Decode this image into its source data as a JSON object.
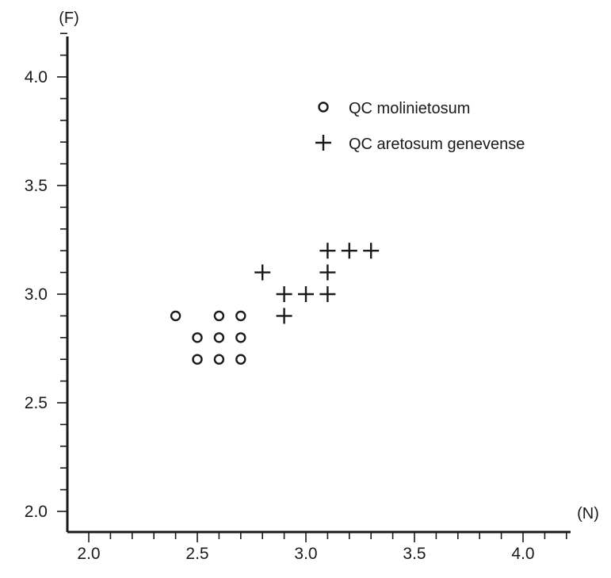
{
  "chart_data": {
    "type": "scatter",
    "xlabel": "(N)",
    "ylabel": "(F)",
    "xlim": [
      1.9,
      4.2
    ],
    "ylim": [
      1.9,
      4.2
    ],
    "x_major_ticks": [
      2.0,
      2.5,
      3.0,
      3.5,
      4.0
    ],
    "y_major_ticks": [
      2.0,
      2.5,
      3.0,
      3.5,
      4.0
    ],
    "x_tick_labels": [
      "2.0",
      "2.5",
      "3.0",
      "3.5",
      "4.0"
    ],
    "y_tick_labels": [
      "2.0",
      "2.5",
      "3.0",
      "3.5",
      "4.0"
    ],
    "minor_tick_step": 0.1,
    "grid": false,
    "legend_position": "top-right",
    "series": [
      {
        "name": "QC molinietosum",
        "marker": "circle",
        "points": [
          [
            2.4,
            2.9
          ],
          [
            2.6,
            2.9
          ],
          [
            2.7,
            2.9
          ],
          [
            2.5,
            2.8
          ],
          [
            2.6,
            2.8
          ],
          [
            2.7,
            2.8
          ],
          [
            2.5,
            2.7
          ],
          [
            2.6,
            2.7
          ],
          [
            2.7,
            2.7
          ]
        ]
      },
      {
        "name": "QC aretosum genevense",
        "marker": "plus",
        "points": [
          [
            3.1,
            3.2
          ],
          [
            3.2,
            3.2
          ],
          [
            3.3,
            3.2
          ],
          [
            2.8,
            3.1
          ],
          [
            3.1,
            3.1
          ],
          [
            2.9,
            3.0
          ],
          [
            3.0,
            3.0
          ],
          [
            3.1,
            3.0
          ],
          [
            2.9,
            2.9
          ]
        ]
      }
    ]
  },
  "colors": {
    "ink": "#1a1a1a",
    "background": "#ffffff"
  }
}
